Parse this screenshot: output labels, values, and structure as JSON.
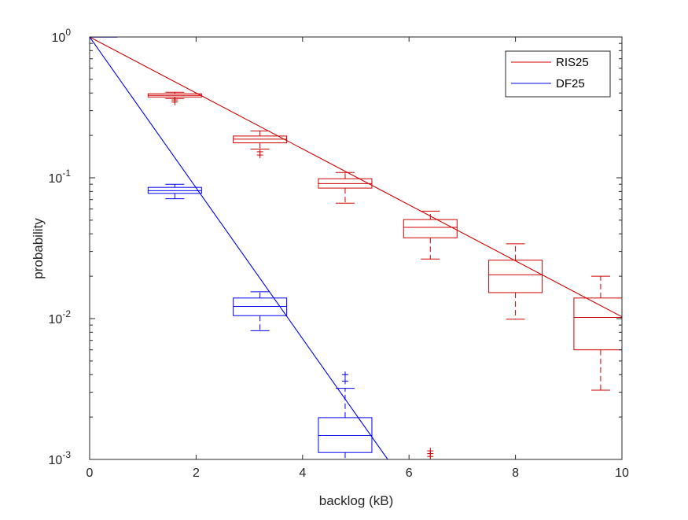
{
  "chart_data": {
    "type": "box",
    "xlabel": "backlog (kB)",
    "ylabel": "probability",
    "x_ticks": [
      0,
      2,
      4,
      6,
      8,
      10
    ],
    "xlim": [
      0,
      10
    ],
    "ylim": [
      0.001,
      1
    ],
    "yscale": "log",
    "y_ticks": [
      {
        "base": "10",
        "exp": "0",
        "value": 1
      },
      {
        "base": "10",
        "exp": "-1",
        "value": 0.1
      },
      {
        "base": "10",
        "exp": "-2",
        "value": 0.01
      },
      {
        "base": "10",
        "exp": "-3",
        "value": 0.001
      }
    ],
    "legend": {
      "position": "top-right",
      "entries": [
        "RIS25",
        "DF25"
      ]
    },
    "colors": {
      "RIS25": "#cc0000",
      "DF25": "#0000ee"
    },
    "lines": [
      {
        "name": "RIS25",
        "x": [
          0,
          10
        ],
        "y": [
          1,
          0.0103
        ]
      },
      {
        "name": "DF25",
        "x": [
          0,
          5.6
        ],
        "y": [
          1,
          0.001
        ]
      }
    ],
    "boxes": [
      {
        "series": "RIS25",
        "x": 1.6,
        "lower_whisker": 0.365,
        "q1": 0.375,
        "median": 0.385,
        "q3": 0.395,
        "upper_whisker": 0.405,
        "outliers": [
          0.345,
          0.357
        ]
      },
      {
        "series": "RIS25",
        "x": 3.2,
        "lower_whisker": 0.16,
        "q1": 0.177,
        "median": 0.188,
        "q3": 0.198,
        "upper_whisker": 0.215,
        "outliers": [
          0.145,
          0.153
        ]
      },
      {
        "series": "RIS25",
        "x": 4.8,
        "lower_whisker": 0.066,
        "q1": 0.0845,
        "median": 0.091,
        "q3": 0.0985,
        "upper_whisker": 0.109,
        "outliers": []
      },
      {
        "series": "RIS25",
        "x": 6.4,
        "lower_whisker": 0.0265,
        "q1": 0.0375,
        "median": 0.0445,
        "q3": 0.0505,
        "upper_whisker": 0.058,
        "outliers": [
          0.00105,
          0.0011,
          0.00115
        ]
      },
      {
        "series": "RIS25",
        "x": 8.0,
        "lower_whisker": 0.0099,
        "q1": 0.0153,
        "median": 0.0205,
        "q3": 0.026,
        "upper_whisker": 0.034,
        "outliers": []
      },
      {
        "series": "RIS25",
        "x": 9.6,
        "lower_whisker": 0.0031,
        "q1": 0.006,
        "median": 0.0102,
        "q3": 0.014,
        "upper_whisker": 0.02,
        "outliers": []
      },
      {
        "series": "DF25",
        "x": 1.6,
        "lower_whisker": 0.071,
        "q1": 0.0775,
        "median": 0.081,
        "q3": 0.0855,
        "upper_whisker": 0.09,
        "outliers": []
      },
      {
        "series": "DF25",
        "x": 3.2,
        "lower_whisker": 0.0082,
        "q1": 0.0105,
        "median": 0.0122,
        "q3": 0.014,
        "upper_whisker": 0.0155,
        "outliers": []
      },
      {
        "series": "DF25",
        "x": 4.8,
        "lower_whisker": 0.0009,
        "q1": 0.00112,
        "median": 0.00148,
        "q3": 0.00198,
        "upper_whisker": 0.0032,
        "outliers": [
          0.0036,
          0.004
        ]
      }
    ]
  }
}
